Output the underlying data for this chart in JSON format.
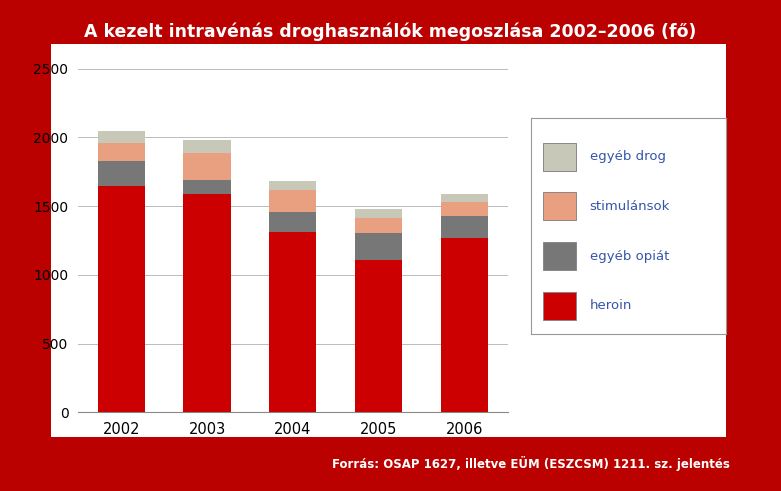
{
  "title": "A kezelt intravénás droghasználók megoszlása 2002–2006 (fő)",
  "years": [
    "2002",
    "2003",
    "2004",
    "2005",
    "2006"
  ],
  "heroin": [
    1650,
    1590,
    1310,
    1110,
    1270
  ],
  "egyeb_opiat": [
    180,
    100,
    150,
    195,
    160
  ],
  "stimulansok": [
    130,
    200,
    160,
    110,
    100
  ],
  "egyeb_drog": [
    90,
    90,
    60,
    65,
    60
  ],
  "color_heroin": "#cc0000",
  "color_egyeb_opiat": "#777777",
  "color_stimulansok": "#e8a080",
  "color_egyeb_drog": "#c8c8b8",
  "ylim": [
    0,
    2500
  ],
  "yticks": [
    0,
    500,
    1000,
    1500,
    2000,
    2500
  ],
  "background_outer": "#bb0000",
  "background_plot": "#ffffff",
  "title_color": "#ffffff",
  "title_fontsize": 12.5,
  "source_text": "Forrás: OSAP 1627, illetve EÜM (ESZCSM) 1211. sz. jelentés",
  "legend_labels": [
    "egyéb drog",
    "stimulánsok",
    "egyéb opiát",
    "heroin"
  ],
  "legend_text_color": "#3355aa",
  "bar_width": 0.55
}
